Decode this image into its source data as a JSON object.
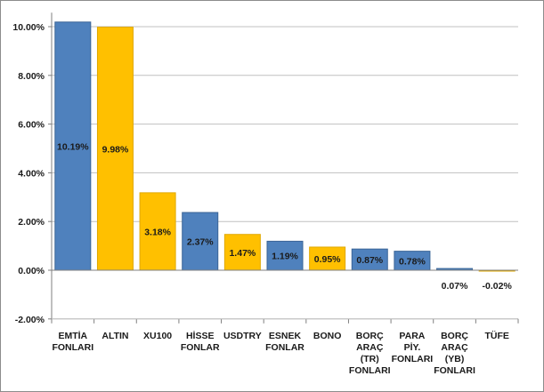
{
  "chart_data": {
    "type": "bar",
    "title": "",
    "xlabel": "",
    "ylabel": "",
    "ylim": [
      -2,
      10.5
    ],
    "yticks": [
      10,
      8,
      6,
      4,
      2,
      0,
      -2
    ],
    "ytick_labels": [
      "10.00%",
      "8.00%",
      "6.00%",
      "4.00%",
      "2.00%",
      "0.00%",
      "-2.00%"
    ],
    "grid": "horizontal",
    "categories": [
      [
        "EMTİA",
        "FONLARI"
      ],
      [
        "ALTIN"
      ],
      [
        "XU100"
      ],
      [
        "HİSSE",
        "FONLAR"
      ],
      [
        "USDTRY"
      ],
      [
        "ESNEK",
        "FONLAR"
      ],
      [
        "BONO"
      ],
      [
        "BORÇ",
        "ARAÇ",
        "(TR)",
        "FONLARI"
      ],
      [
        "PARA",
        "PİY.",
        "FONLARI"
      ],
      [
        "BORÇ",
        "ARAÇ",
        "(YB)",
        "FONLARI"
      ],
      [
        "TÜFE"
      ]
    ],
    "values": [
      10.19,
      9.98,
      3.18,
      2.37,
      1.47,
      1.19,
      0.95,
      0.87,
      0.78,
      0.07,
      -0.02
    ],
    "value_labels": [
      "10.19%",
      "9.98%",
      "3.18%",
      "2.37%",
      "1.47%",
      "1.19%",
      "0.95%",
      "0.87%",
      "0.78%",
      "0.07%",
      "-0.02%"
    ],
    "colors": [
      "#4f81bd",
      "#ffc000",
      "#ffc000",
      "#4f81bd",
      "#ffc000",
      "#4f81bd",
      "#ffc000",
      "#4f81bd",
      "#4f81bd",
      "#4f81bd",
      "#ffc000"
    ],
    "stroke_colors": [
      "#3a6496",
      "#e0a800",
      "#e0a800",
      "#3a6496",
      "#e0a800",
      "#3a6496",
      "#e0a800",
      "#3a6496",
      "#3a6496",
      "#3a6496",
      "#e0a800"
    ],
    "gridline_color": "#c0c0c0",
    "axis_color": "#7f7f7f"
  }
}
